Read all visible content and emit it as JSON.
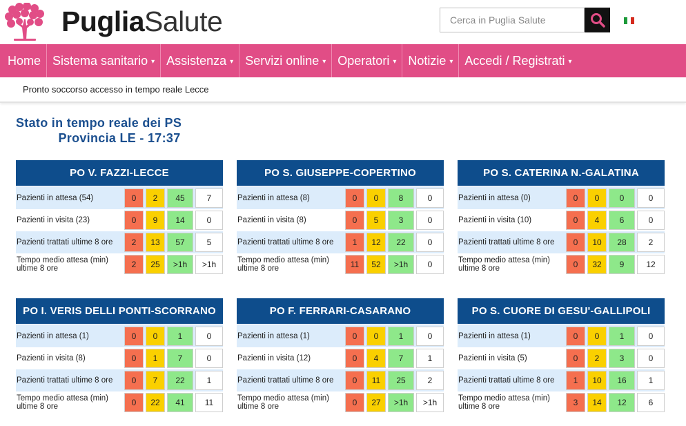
{
  "header": {
    "logo_bold": "Puglia",
    "logo_light": "Salute",
    "search_placeholder": "Cerca in Puglia Salute",
    "search_icon": "search-icon",
    "flag_icon": "italian-flag-icon"
  },
  "nav": [
    {
      "label": "Home",
      "caret": false
    },
    {
      "label": "Sistema sanitario",
      "caret": true
    },
    {
      "label": "Assistenza",
      "caret": true
    },
    {
      "label": "Servizi online",
      "caret": true
    },
    {
      "label": "Operatori",
      "caret": true
    },
    {
      "label": "Notizie",
      "caret": true
    },
    {
      "label": "Accedi / Registrati",
      "caret": true
    }
  ],
  "breadcrumb": "Pronto soccorso accesso in tempo reale Lecce",
  "title": {
    "line1": "Stato in tempo reale dei PS",
    "line2": "Provincia LE - 17:37"
  },
  "colors": {
    "brand_pink": "#e14d86",
    "header_blue": "#0e4d8c",
    "red": "#f56f4f",
    "yellow": "#fad000",
    "green": "#8ee88a"
  },
  "cards": [
    {
      "name": "PO V. FAZZI-LECCE",
      "rows": [
        {
          "label": "Pazienti in attesa (54)",
          "values": [
            "0",
            "2",
            "45",
            "7"
          ]
        },
        {
          "label": "Pazienti in visita (23)",
          "values": [
            "0",
            "9",
            "14",
            "0"
          ]
        },
        {
          "label": "Pazienti trattati ultime 8 ore",
          "values": [
            "2",
            "13",
            "57",
            "5"
          ]
        },
        {
          "label": "Tempo medio attesa (min) ultime 8 ore",
          "values": [
            "2",
            "25",
            ">1h",
            ">1h"
          ]
        }
      ]
    },
    {
      "name": "PO S. GIUSEPPE-COPERTINO",
      "rows": [
        {
          "label": "Pazienti in attesa (8)",
          "values": [
            "0",
            "0",
            "8",
            "0"
          ]
        },
        {
          "label": "Pazienti in visita (8)",
          "values": [
            "0",
            "5",
            "3",
            "0"
          ]
        },
        {
          "label": "Pazienti trattati ultime 8 ore",
          "values": [
            "1",
            "12",
            "22",
            "0"
          ]
        },
        {
          "label": "Tempo medio attesa (min) ultime 8 ore",
          "values": [
            "11",
            "52",
            ">1h",
            "0"
          ]
        }
      ]
    },
    {
      "name": "PO S. CATERINA N.-GALATINA",
      "rows": [
        {
          "label": "Pazienti in attesa (0)",
          "values": [
            "0",
            "0",
            "0",
            "0"
          ]
        },
        {
          "label": "Pazienti in visita (10)",
          "values": [
            "0",
            "4",
            "6",
            "0"
          ]
        },
        {
          "label": "Pazienti trattati ultime 8 ore",
          "values": [
            "0",
            "10",
            "28",
            "2"
          ]
        },
        {
          "label": "Tempo medio attesa (min) ultime 8 ore",
          "values": [
            "0",
            "32",
            "9",
            "12"
          ]
        }
      ]
    },
    {
      "name": "PO I. VERIS DELLI PONTI-SCORRANO",
      "rows": [
        {
          "label": "Pazienti in attesa (1)",
          "values": [
            "0",
            "0",
            "1",
            "0"
          ]
        },
        {
          "label": "Pazienti in visita (8)",
          "values": [
            "0",
            "1",
            "7",
            "0"
          ]
        },
        {
          "label": "Pazienti trattati ultime 8 ore",
          "values": [
            "0",
            "7",
            "22",
            "1"
          ]
        },
        {
          "label": "Tempo medio attesa (min) ultime 8 ore",
          "values": [
            "0",
            "22",
            "41",
            "11"
          ]
        }
      ]
    },
    {
      "name": "PO F. FERRARI-CASARANO",
      "rows": [
        {
          "label": "Pazienti in attesa (1)",
          "values": [
            "0",
            "0",
            "1",
            "0"
          ]
        },
        {
          "label": "Pazienti in visita (12)",
          "values": [
            "0",
            "4",
            "7",
            "1"
          ]
        },
        {
          "label": "Pazienti trattati ultime 8 ore",
          "values": [
            "0",
            "11",
            "25",
            "2"
          ]
        },
        {
          "label": "Tempo medio attesa (min) ultime 8 ore",
          "values": [
            "0",
            "27",
            ">1h",
            ">1h"
          ]
        }
      ]
    },
    {
      "name": "PO S. CUORE DI GESU'-GALLIPOLI",
      "rows": [
        {
          "label": "Pazienti in attesa (1)",
          "values": [
            "0",
            "0",
            "1",
            "0"
          ]
        },
        {
          "label": "Pazienti in visita (5)",
          "values": [
            "0",
            "2",
            "3",
            "0"
          ]
        },
        {
          "label": "Pazienti trattati ultime 8 ore",
          "values": [
            "1",
            "10",
            "16",
            "1"
          ]
        },
        {
          "label": "Tempo medio attesa (min) ultime 8 ore",
          "values": [
            "3",
            "14",
            "12",
            "6"
          ]
        }
      ]
    }
  ]
}
